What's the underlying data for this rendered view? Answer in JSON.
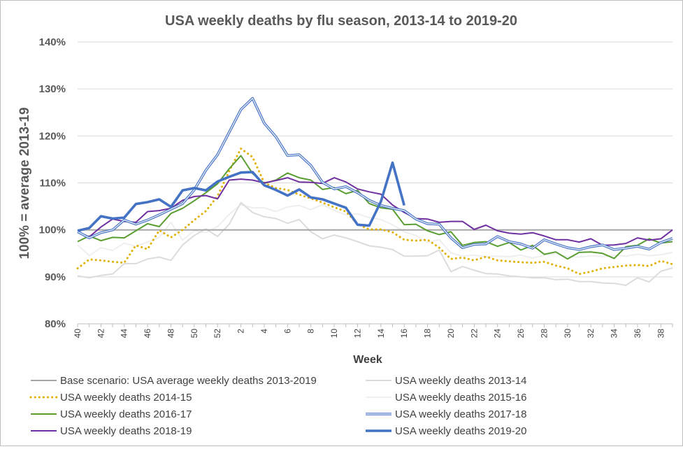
{
  "chart_data": {
    "type": "line",
    "title": "USA weekly deaths by flu season, 2013-14 to 2019-20",
    "xlabel": "Week",
    "ylabel": "100% = average 2013-19",
    "ylim": [
      80,
      140
    ],
    "yticks": [
      "80%",
      "90%",
      "100%",
      "110%",
      "120%",
      "130%",
      "140%"
    ],
    "grid": "horizontal",
    "legend_position": "bottom",
    "weeks": [
      40,
      41,
      42,
      43,
      44,
      45,
      46,
      47,
      48,
      49,
      50,
      51,
      52,
      1,
      2,
      3,
      4,
      5,
      6,
      7,
      8,
      9,
      10,
      11,
      12,
      13,
      14,
      15,
      16,
      17,
      18,
      19,
      20,
      21,
      22,
      23,
      24,
      25,
      26,
      27,
      28,
      29,
      30,
      31,
      32,
      33,
      34,
      35,
      36,
      37,
      38,
      39
    ],
    "series": [
      {
        "name": "Base scenario: USA average weekly deaths 2013-2019",
        "color": "#a6a6a6",
        "style": "solid",
        "values": [
          100,
          100,
          100,
          100,
          100,
          100,
          100,
          100,
          100,
          100,
          100,
          100,
          100,
          100,
          100,
          100,
          100,
          100,
          100,
          100,
          100,
          100,
          100,
          100,
          100,
          100,
          100,
          100,
          100,
          100,
          100,
          100,
          100,
          100,
          100,
          100,
          100,
          100,
          100,
          100,
          100,
          100,
          100,
          100,
          100,
          100,
          100,
          100,
          100,
          100,
          100,
          100
        ]
      },
      {
        "name": "USA weekly deaths 2013-14",
        "color": "#dcdcdc",
        "style": "solid",
        "values": [
          90.2,
          89.8,
          90.3,
          90.6,
          92.8,
          92.8,
          93.8,
          94.2,
          93.5,
          96.8,
          98.8,
          100.2,
          98.6,
          101.2,
          105.8,
          103.7,
          102.8,
          102.4,
          101.4,
          102.2,
          99.6,
          98.1,
          98.9,
          98.3,
          97.5,
          96.6,
          96.3,
          95.8,
          94.4,
          94.4,
          94.5,
          95.7,
          91.1,
          92.2,
          91.4,
          90.7,
          90.6,
          90.2,
          90,
          89.8,
          89.8,
          89.4,
          89.5,
          89,
          89,
          88.7,
          88.6,
          88.2,
          89.8,
          88.9,
          91.2,
          91.9
        ]
      },
      {
        "name": "USA weekly deaths 2014-15",
        "color": "#e0b000",
        "style": "dotted",
        "values": [
          91.8,
          93.7,
          93.5,
          93.2,
          93.0,
          96.7,
          95.9,
          99.9,
          98.4,
          100.0,
          102.1,
          104.0,
          107.2,
          112.5,
          117.3,
          115.5,
          110.0,
          108.9,
          108.5,
          107.5,
          106.7,
          105.8,
          104.8,
          103.9,
          101.2,
          100.1,
          100.1,
          99.5,
          97.9,
          97.7,
          97.9,
          96.2,
          93.8,
          94.1,
          93.5,
          94.3,
          93.5,
          93.3,
          93.1,
          93.0,
          93.2,
          92.4,
          91.8,
          90.6,
          91.1,
          91.8,
          92.1,
          92.4,
          92.5,
          92.3,
          93.4,
          92.7
        ]
      },
      {
        "name": "USA weekly deaths 2015-16",
        "color": "#efefef",
        "style": "solid",
        "values": [
          96.8,
          94.5,
          96.2,
          95.6,
          97.2,
          96.5,
          97.4,
          98.4,
          101.6,
          97.8,
          99.8,
          99.4,
          100.7,
          103.3,
          105.4,
          104.7,
          104.7,
          103.9,
          104.9,
          105.2,
          104.3,
          105.4,
          104.1,
          103.2,
          103.4,
          102.6,
          102.2,
          101.1,
          99.6,
          98.8,
          97.3,
          97.9,
          95.1,
          94.4,
          94.6,
          94.3,
          94.4,
          94.3,
          94.6,
          94.0,
          94.6,
          94.9,
          94.3,
          94.2,
          94.5,
          94.3,
          94.6,
          94.4,
          94.8,
          94.5,
          94.7,
          95.2
        ]
      },
      {
        "name": "USA weekly deaths 2016-17",
        "color": "#5a9e32",
        "style": "solid",
        "values": [
          97.5,
          98.7,
          97.7,
          98.4,
          98.3,
          99.8,
          101.3,
          100.7,
          103.5,
          104.6,
          106.2,
          107.9,
          109.8,
          113.0,
          115.8,
          112.0,
          109.9,
          110.6,
          112.1,
          111.1,
          110.6,
          108.6,
          109.0,
          107.7,
          108.4,
          105.6,
          104.7,
          104.4,
          101.1,
          101.2,
          99.8,
          99.0,
          99.6,
          96.7,
          97.3,
          97.5,
          96.5,
          97.3,
          95.7,
          96.7,
          94.8,
          95.3,
          93.8,
          95.2,
          95.3,
          95.0,
          93.9,
          96.4,
          96.7,
          98.1,
          97.2,
          97.5
        ]
      },
      {
        "name": "USA weekly deaths 2017-18",
        "color": "#4472c4",
        "style": "double",
        "values": [
          99.6,
          98.3,
          99.4,
          100.0,
          102.1,
          101.2,
          102.1,
          103.2,
          104.4,
          105.6,
          108.5,
          112.7,
          116.0,
          120.8,
          125.6,
          128.0,
          122.7,
          119.8,
          115.8,
          116.0,
          113.7,
          110.1,
          108.7,
          109.2,
          107.9,
          106.3,
          105.2,
          104.6,
          104.1,
          102.3,
          101.3,
          101.2,
          98.3,
          96.2,
          96.9,
          97.0,
          98.6,
          97.5,
          97.0,
          96.1,
          97.9,
          97.0,
          96.2,
          95.8,
          96.4,
          96.8,
          95.8,
          96.1,
          96.5,
          95.9,
          97.3,
          98.2
        ]
      },
      {
        "name": "USA weekly deaths 2018-19",
        "color": "#7030a0",
        "style": "solid",
        "values": [
          99.6,
          98.5,
          100.6,
          102.3,
          101.8,
          101.6,
          103.9,
          104.1,
          104.6,
          106.3,
          107.1,
          107.3,
          106.6,
          110.6,
          110.8,
          110.6,
          110.0,
          110.5,
          111.1,
          110.2,
          110.1,
          109.9,
          111.1,
          110.2,
          108.7,
          108.1,
          107.6,
          105.3,
          103.7,
          102.4,
          102.3,
          101.6,
          101.8,
          101.8,
          100.1,
          101.0,
          99.8,
          99.3,
          99.1,
          99.4,
          98.7,
          97.9,
          97.9,
          97.4,
          98.1,
          96.7,
          96.8,
          97.1,
          98.3,
          97.8,
          98.1,
          100.0
        ]
      },
      {
        "name": "USA weekly deaths 2019-20",
        "color": "#4472c4",
        "style": "bold",
        "values": [
          99.8,
          100.4,
          102.9,
          102.4,
          102.6,
          105.5,
          105.9,
          106.5,
          104.9,
          108.4,
          108.9,
          108.4,
          110.3,
          111.3,
          112.2,
          112.3,
          109.5,
          108.5,
          107.3,
          108.6,
          106.9,
          106.5,
          105.6,
          104.7,
          101.1,
          100.9,
          106.0,
          114.3,
          105.2
        ]
      }
    ]
  }
}
